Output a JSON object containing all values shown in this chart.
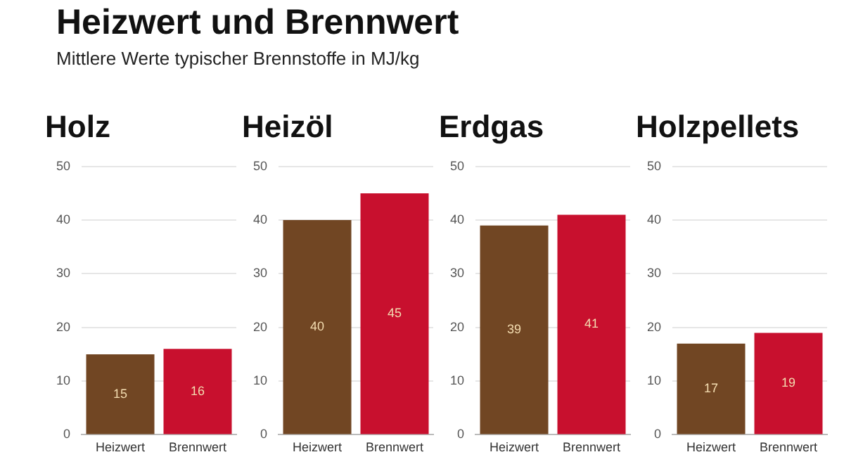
{
  "chart_data": [
    {
      "type": "other",
      "title": "Heizwert und Brennwert",
      "subtitle": "Mittlere Werte typischer Brennstoffe in MJ/kg"
    },
    {
      "type": "bar",
      "title": "Holz",
      "categories": [
        "Heizwert",
        "Brennwert"
      ],
      "values": [
        15,
        16
      ],
      "colors": [
        "#714623",
        "#c8102e"
      ],
      "ylim": [
        0,
        50
      ],
      "yticks": [
        0,
        10,
        20,
        30,
        40,
        50
      ],
      "grid": "y",
      "data_labels": true
    },
    {
      "type": "bar",
      "title": "Heizöl",
      "categories": [
        "Heizwert",
        "Brennwert"
      ],
      "values": [
        40,
        45
      ],
      "colors": [
        "#714623",
        "#c8102e"
      ],
      "ylim": [
        0,
        50
      ],
      "yticks": [
        0,
        10,
        20,
        30,
        40,
        50
      ],
      "grid": "y",
      "data_labels": true
    },
    {
      "type": "bar",
      "title": "Erdgas",
      "categories": [
        "Heizwert",
        "Brennwert"
      ],
      "values": [
        39,
        41
      ],
      "colors": [
        "#714623",
        "#c8102e"
      ],
      "ylim": [
        0,
        50
      ],
      "yticks": [
        0,
        10,
        20,
        30,
        40,
        50
      ],
      "grid": "y",
      "data_labels": true
    },
    {
      "type": "bar",
      "title": "Holzpellets",
      "categories": [
        "Heizwert",
        "Brennwert"
      ],
      "values": [
        17,
        19
      ],
      "colors": [
        "#714623",
        "#c8102e"
      ],
      "ylim": [
        0,
        50
      ],
      "yticks": [
        0,
        10,
        20,
        30,
        40,
        50
      ],
      "grid": "y",
      "data_labels": true
    }
  ]
}
